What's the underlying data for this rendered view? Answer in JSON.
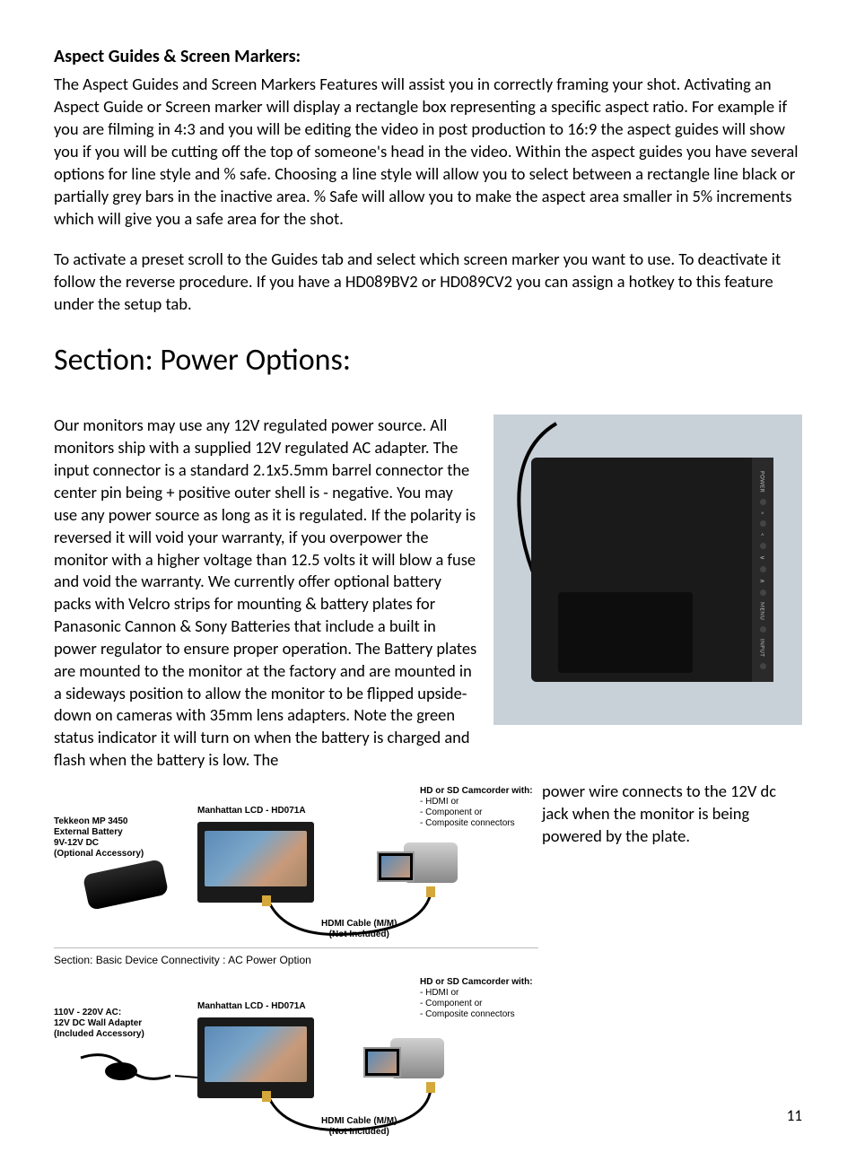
{
  "page": {
    "number": "11",
    "background": "#ffffff",
    "text_color": "#000000"
  },
  "aspect": {
    "heading": "Aspect Guides & Screen Markers:",
    "para1": "The Aspect Guides and Screen Markers Features will assist you in correctly framing your shot.  Activating an Aspect Guide or Screen marker will display a rectangle box representing a specific aspect ratio. For example if you are filming in 4:3 and you will be editing the video in post production to 16:9 the aspect guides will show you if you will be cutting off the top of someone's head in the video.  Within the aspect guides you have several options for line style and % safe. Choosing a line style will allow you to select between a rectangle line black or partially grey bars in the inactive area. % Safe will allow you to make the aspect area smaller in 5% increments which will give you a safe area for the shot.",
    "para2": "To activate a preset scroll to the Guides tab and select which screen marker you want to use. To deactivate it follow the reverse procedure. If you have a HD089BV2 or HD089CV2 you can assign a hotkey to this feature under the setup tab."
  },
  "power": {
    "heading": "Section: Power Options:",
    "para_full": "Our monitors may use any 12V regulated power source. All monitors ship with a supplied 12V regulated AC adapter. The input connector is a standard 2.1x5.5mm barrel connector the center pin being + positive outer shell is - negative. You may use any power source as long as it is regulated. If the polarity is reversed it will void your warranty, if you overpower the monitor with a higher voltage than 12.5 volts it will blow a fuse and void the warranty. We currently offer optional battery packs with Velcro strips for mounting & battery plates for Panasonic Cannon & Sony Batteries that include a built in power regulator to ensure proper operation. The Battery plates are mounted to the monitor at the factory and are mounted in a sideways position to allow the monitor to be flipped upside-down on cameras with 35mm lens adapters. Note the green status indicator it will turn on when the battery is charged and flash when the battery is low. The",
    "caption_right": "power wire connects to the 12V dc jack when the monitor is being powered by the plate."
  },
  "diagram1": {
    "battery_label": "Tekkeon MP 3450\nExternal Battery\n9V-12V DC\n(Optional Accessory)",
    "lcd_label": "Manhattan LCD - HD071A",
    "cam_label_prefix": "HD or SD Camcorder with:",
    "cam_label_items": "- HDMI or\n- Component or\n- Composite connectors",
    "cable_label": "HDMI Cable (M/M)\n(Not Included)"
  },
  "diagram2": {
    "section_title": "Section: Basic Device Connectivity : AC Power Option",
    "adapter_label": "110V - 220V AC:\n12V DC Wall Adapter\n(Included Accessory)",
    "lcd_label": "Manhattan LCD - HD071A",
    "cam_label_prefix": "HD or SD Camcorder with:",
    "cam_label_items": "- HDMI or\n- Component or\n- Composite connectors",
    "cable_label": "HDMI Cable (M/M)\n(Not Included)"
  },
  "monitor_photo": {
    "background": "#c8d0d8",
    "body_color": "#1a1a1a",
    "side_labels": [
      "POWER",
      ">",
      "<",
      "∨",
      "∧",
      "MENU",
      "INPUT"
    ]
  }
}
